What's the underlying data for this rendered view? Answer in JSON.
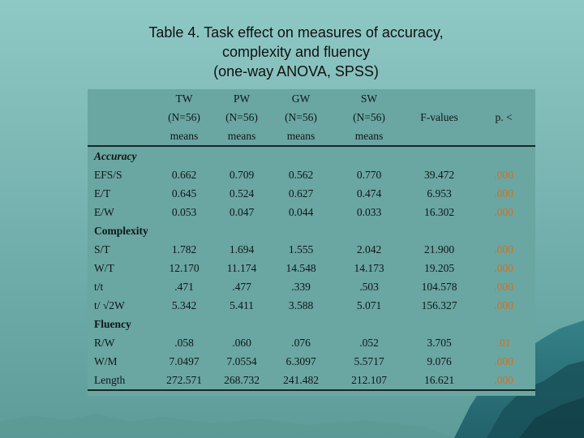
{
  "title": {
    "line1": "Table 4. Task effect on measures of accuracy,",
    "line2": "complexity and fluency",
    "line3": "(one-way ANOVA, SPSS)"
  },
  "table": {
    "columns": [
      "TW",
      "PW",
      "GW",
      "SW",
      "F-values",
      "p. <"
    ],
    "n_row": [
      "(N=56)",
      "(N=56)",
      "(N=56)",
      "(N=56)"
    ],
    "means_row": [
      "means",
      "means",
      "means",
      "means"
    ],
    "sections": [
      {
        "name": "Accuracy",
        "rows": [
          {
            "label": "EFS/S",
            "values": [
              "0.662",
              "0.709",
              "0.562",
              "0.770",
              "39.472",
              ".000"
            ]
          },
          {
            "label": "E/T",
            "values": [
              "0.645",
              "0.524",
              "0.627",
              "0.474",
              "6.953",
              ".000"
            ]
          },
          {
            "label": "E/W",
            "values": [
              "0.053",
              "0.047",
              "0.044",
              "0.033",
              "16.302",
              ".000"
            ]
          }
        ]
      },
      {
        "name": "Complexity",
        "rows": [
          {
            "label": "S/T",
            "values": [
              "1.782",
              "1.694",
              "1.555",
              "2.042",
              "21.900",
              ".000"
            ]
          },
          {
            "label": "W/T",
            "values": [
              "12.170",
              "11.174",
              "14.548",
              "14.173",
              "19.205",
              ".000"
            ]
          },
          {
            "label": "t/t",
            "values": [
              ".471",
              ".477",
              ".339",
              ".503",
              "104.578",
              ".000"
            ]
          },
          {
            "label": "t/ √2W",
            "values": [
              "5.342",
              "5.411",
              "3.588",
              "5.071",
              "156.327",
              ".000"
            ]
          }
        ]
      },
      {
        "name": "Fluency",
        "rows": [
          {
            "label": "R/W",
            "values": [
              ".058",
              ".060",
              ".076",
              ".052",
              "3.705",
              ".01"
            ]
          },
          {
            "label": "W/M",
            "values": [
              "7.0497",
              "7.0554",
              "6.3097",
              "5.5717",
              "9.076",
              ".000"
            ]
          },
          {
            "label": "Length",
            "values": [
              "272.571",
              "268.732",
              "241.482",
              "212.107",
              "16.621",
              ".000"
            ]
          }
        ]
      }
    ]
  }
}
